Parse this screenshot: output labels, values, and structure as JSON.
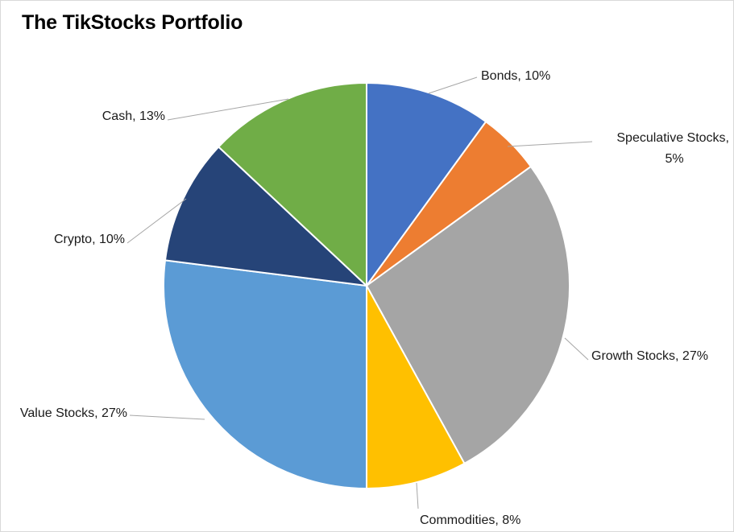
{
  "chart_data": {
    "type": "pie",
    "title": "The TikStocks Portfolio",
    "slices": [
      {
        "category": "Bonds",
        "value": 10,
        "label_lines": [
          "Bonds, 10%"
        ],
        "color": "#4472C4"
      },
      {
        "category": "Speculative Stocks",
        "value": 5,
        "label_lines": [
          "Speculative Stocks,",
          "5%"
        ],
        "color": "#ED7D31"
      },
      {
        "category": "Growth Stocks",
        "value": 27,
        "label_lines": [
          "Growth Stocks, 27%"
        ],
        "color": "#A5A5A5"
      },
      {
        "category": "Commodities",
        "value": 8,
        "label_lines": [
          "Commodities, 8%"
        ],
        "color": "#FFC000"
      },
      {
        "category": "Value Stocks",
        "value": 27,
        "label_lines": [
          "Value Stocks, 27%"
        ],
        "color": "#5B9BD5"
      },
      {
        "category": "Crypto",
        "value": 10,
        "label_lines": [
          "Crypto, 10%"
        ],
        "color": "#264478"
      },
      {
        "category": "Cash",
        "value": 13,
        "label_lines": [
          "Cash, 13%"
        ],
        "color": "#70AD47"
      }
    ],
    "legend": "none"
  }
}
